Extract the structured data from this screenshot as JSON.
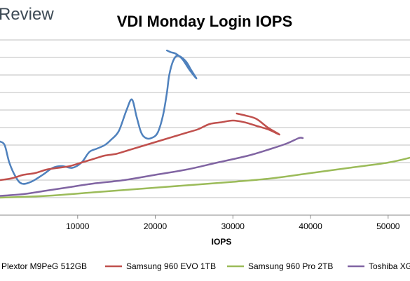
{
  "brand": "Review",
  "chart_data": {
    "type": "line",
    "title": "VDI Monday Login IOPS",
    "subtitle": "",
    "xlabel": "IOPS",
    "ylabel": "",
    "xlim": [
      0,
      52000
    ],
    "x_ticks": [
      "10000",
      "20000",
      "30000",
      "40000",
      "50000"
    ],
    "x_tick_values": [
      10000,
      20000,
      30000,
      40000,
      50000
    ],
    "y_gridlines": 10,
    "grid": true,
    "legend_placement": "bottom",
    "series": [
      {
        "name": "Plextor M9PeG 512GB",
        "color": "#4f81bd",
        "points": [
          [
            0,
            0.42
          ],
          [
            600,
            0.4
          ],
          [
            1200,
            0.3
          ],
          [
            2000,
            0.22
          ],
          [
            2800,
            0.18
          ],
          [
            4000,
            0.19
          ],
          [
            5500,
            0.23
          ],
          [
            6800,
            0.27
          ],
          [
            8000,
            0.28
          ],
          [
            9300,
            0.27
          ],
          [
            10500,
            0.3
          ],
          [
            11500,
            0.36
          ],
          [
            12500,
            0.38
          ],
          [
            13500,
            0.4
          ],
          [
            14300,
            0.43
          ],
          [
            15300,
            0.48
          ],
          [
            16300,
            0.6
          ],
          [
            17000,
            0.66
          ],
          [
            17600,
            0.56
          ],
          [
            18200,
            0.47
          ],
          [
            18800,
            0.44
          ],
          [
            19500,
            0.44
          ],
          [
            20300,
            0.47
          ],
          [
            21000,
            0.57
          ],
          [
            21500,
            0.7
          ],
          [
            21800,
            0.8
          ],
          [
            22300,
            0.88
          ],
          [
            22900,
            0.91
          ],
          [
            23900,
            0.88
          ],
          [
            24600,
            0.83
          ],
          [
            25300,
            0.78
          ],
          [
            24400,
            0.83
          ],
          [
            23500,
            0.89
          ],
          [
            22700,
            0.92
          ],
          [
            22000,
            0.93
          ],
          [
            21500,
            0.94
          ]
        ]
      },
      {
        "name": "Samsung 960 EVO 1TB",
        "color": "#c0504d",
        "points": [
          [
            0,
            0.2
          ],
          [
            1500,
            0.21
          ],
          [
            3000,
            0.23
          ],
          [
            4500,
            0.24
          ],
          [
            6000,
            0.26
          ],
          [
            7500,
            0.27
          ],
          [
            9000,
            0.28
          ],
          [
            10500,
            0.3
          ],
          [
            12000,
            0.32
          ],
          [
            13500,
            0.34
          ],
          [
            15000,
            0.35
          ],
          [
            16500,
            0.37
          ],
          [
            18000,
            0.39
          ],
          [
            19500,
            0.41
          ],
          [
            21000,
            0.43
          ],
          [
            22500,
            0.45
          ],
          [
            24000,
            0.47
          ],
          [
            25500,
            0.49
          ],
          [
            27000,
            0.52
          ],
          [
            28500,
            0.53
          ],
          [
            30000,
            0.54
          ],
          [
            31500,
            0.53
          ],
          [
            33000,
            0.51
          ],
          [
            34500,
            0.49
          ],
          [
            36000,
            0.46
          ],
          [
            34500,
            0.5
          ],
          [
            33000,
            0.55
          ],
          [
            31500,
            0.57
          ],
          [
            30500,
            0.58
          ]
        ]
      },
      {
        "name": "Samsung 960 Pro 2TB",
        "color": "#9bbb59",
        "points": [
          [
            0,
            0.1
          ],
          [
            6000,
            0.11
          ],
          [
            12000,
            0.13
          ],
          [
            18000,
            0.15
          ],
          [
            24000,
            0.17
          ],
          [
            30000,
            0.19
          ],
          [
            35000,
            0.21
          ],
          [
            40000,
            0.24
          ],
          [
            45000,
            0.27
          ],
          [
            50000,
            0.3
          ],
          [
            53000,
            0.33
          ]
        ]
      },
      {
        "name": "Toshiba XG",
        "color": "#8064a2",
        "points": [
          [
            0,
            0.11
          ],
          [
            3000,
            0.12
          ],
          [
            6000,
            0.14
          ],
          [
            9000,
            0.16
          ],
          [
            12000,
            0.18
          ],
          [
            16000,
            0.2
          ],
          [
            20000,
            0.23
          ],
          [
            24000,
            0.26
          ],
          [
            28000,
            0.3
          ],
          [
            32000,
            0.34
          ],
          [
            35000,
            0.38
          ],
          [
            37000,
            0.41
          ],
          [
            38500,
            0.44
          ],
          [
            39000,
            0.44
          ]
        ]
      }
    ]
  }
}
